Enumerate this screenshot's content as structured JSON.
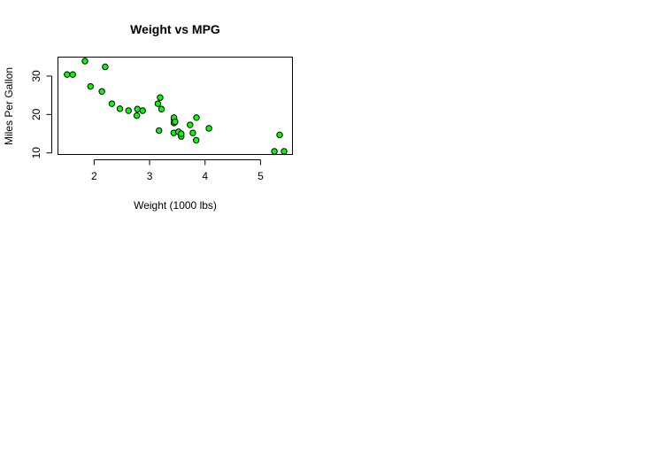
{
  "chart_data": {
    "type": "scatter",
    "title": "Weight vs MPG",
    "xlabel": "Weight (1000 lbs)",
    "ylabel": "Miles Per Gallon",
    "xlim": [
      1.5,
      5.424
    ],
    "ylim": [
      10.4,
      33.9
    ],
    "xticks": [
      2,
      3,
      4,
      5
    ],
    "yticks": [
      10,
      20,
      30
    ],
    "grid": false,
    "point_color": "#00ff00",
    "points": [
      {
        "x": 1.513,
        "y": 30.4
      },
      {
        "x": 1.615,
        "y": 30.4
      },
      {
        "x": 1.835,
        "y": 33.9
      },
      {
        "x": 1.935,
        "y": 27.3
      },
      {
        "x": 2.14,
        "y": 26.0
      },
      {
        "x": 2.2,
        "y": 32.4
      },
      {
        "x": 2.32,
        "y": 22.8
      },
      {
        "x": 2.465,
        "y": 21.5
      },
      {
        "x": 2.62,
        "y": 21.0
      },
      {
        "x": 2.77,
        "y": 19.7
      },
      {
        "x": 2.78,
        "y": 21.4
      },
      {
        "x": 2.875,
        "y": 21.0
      },
      {
        "x": 3.15,
        "y": 22.8
      },
      {
        "x": 3.17,
        "y": 15.8
      },
      {
        "x": 3.19,
        "y": 24.4
      },
      {
        "x": 3.215,
        "y": 21.4
      },
      {
        "x": 3.435,
        "y": 15.2
      },
      {
        "x": 3.44,
        "y": 18.7
      },
      {
        "x": 3.44,
        "y": 19.2
      },
      {
        "x": 3.44,
        "y": 17.8
      },
      {
        "x": 3.46,
        "y": 18.1
      },
      {
        "x": 3.52,
        "y": 15.5
      },
      {
        "x": 3.57,
        "y": 14.3
      },
      {
        "x": 3.57,
        "y": 15.0
      },
      {
        "x": 3.73,
        "y": 17.3
      },
      {
        "x": 3.78,
        "y": 15.2
      },
      {
        "x": 3.84,
        "y": 13.3
      },
      {
        "x": 3.845,
        "y": 19.2
      },
      {
        "x": 4.07,
        "y": 16.4
      },
      {
        "x": 5.25,
        "y": 10.4
      },
      {
        "x": 5.345,
        "y": 14.7
      },
      {
        "x": 5.424,
        "y": 10.4
      }
    ]
  }
}
